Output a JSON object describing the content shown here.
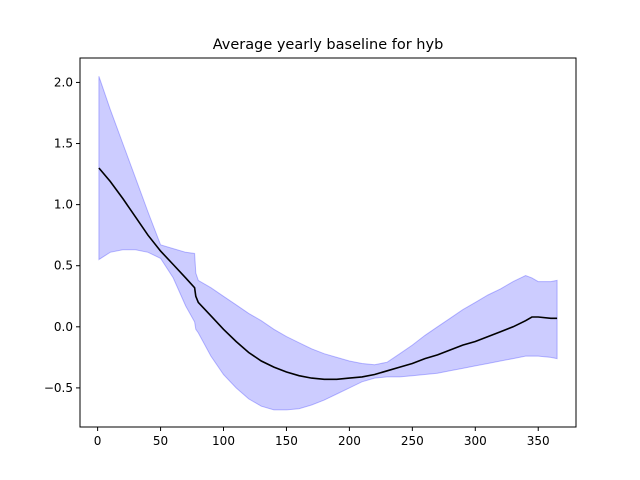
{
  "chart_data": {
    "type": "line",
    "title": "Average yearly baseline for hyb",
    "xlabel": "",
    "ylabel": "",
    "xlim": [
      -14,
      380
    ],
    "ylim": [
      -0.82,
      2.2
    ],
    "xticks": [
      0,
      50,
      100,
      150,
      200,
      250,
      300,
      350
    ],
    "yticks": [
      -0.5,
      0.0,
      0.5,
      1.0,
      1.5,
      2.0
    ],
    "ytick_labels": [
      "−0.5",
      "0.0",
      "0.5",
      "1.0",
      "1.5",
      "2.0"
    ],
    "grid": false,
    "legend": "none",
    "colors": {
      "mean_line": "#000000",
      "band_fill": "#0000ff",
      "band_fill_opacity": 0.2
    },
    "series": [
      {
        "role": "mean",
        "x": [
          1,
          10,
          20,
          30,
          40,
          50,
          60,
          70,
          77,
          78,
          80,
          90,
          100,
          110,
          120,
          130,
          140,
          150,
          160,
          170,
          180,
          190,
          200,
          210,
          220,
          230,
          240,
          250,
          260,
          270,
          280,
          290,
          300,
          310,
          320,
          330,
          340,
          345,
          350,
          360,
          365
        ],
        "y": [
          1.3,
          1.19,
          1.05,
          0.9,
          0.75,
          0.62,
          0.51,
          0.4,
          0.32,
          0.25,
          0.2,
          0.09,
          -0.02,
          -0.12,
          -0.21,
          -0.28,
          -0.33,
          -0.37,
          -0.4,
          -0.42,
          -0.43,
          -0.43,
          -0.42,
          -0.41,
          -0.39,
          -0.36,
          -0.33,
          -0.3,
          -0.26,
          -0.23,
          -0.19,
          -0.15,
          -0.12,
          -0.08,
          -0.04,
          0.0,
          0.05,
          0.08,
          0.08,
          0.07,
          0.07
        ]
      },
      {
        "role": "band",
        "x": [
          1,
          10,
          20,
          30,
          40,
          50,
          60,
          70,
          77,
          78,
          80,
          90,
          100,
          110,
          120,
          130,
          140,
          150,
          160,
          170,
          180,
          190,
          200,
          210,
          220,
          230,
          240,
          250,
          260,
          270,
          280,
          290,
          300,
          310,
          320,
          330,
          340,
          345,
          350,
          360,
          365
        ],
        "upper": [
          2.05,
          1.78,
          1.5,
          1.22,
          0.94,
          0.67,
          0.64,
          0.61,
          0.6,
          0.44,
          0.38,
          0.32,
          0.25,
          0.18,
          0.11,
          0.05,
          -0.02,
          -0.08,
          -0.13,
          -0.18,
          -0.22,
          -0.25,
          -0.28,
          -0.3,
          -0.31,
          -0.29,
          -0.22,
          -0.15,
          -0.07,
          0.0,
          0.07,
          0.14,
          0.2,
          0.26,
          0.31,
          0.37,
          0.42,
          0.4,
          0.37,
          0.37,
          0.38
        ],
        "lower": [
          0.55,
          0.61,
          0.63,
          0.63,
          0.61,
          0.56,
          0.4,
          0.17,
          0.04,
          -0.02,
          -0.05,
          -0.24,
          -0.39,
          -0.5,
          -0.59,
          -0.65,
          -0.68,
          -0.68,
          -0.67,
          -0.64,
          -0.6,
          -0.55,
          -0.5,
          -0.45,
          -0.42,
          -0.41,
          -0.41,
          -0.4,
          -0.39,
          -0.38,
          -0.36,
          -0.34,
          -0.32,
          -0.3,
          -0.28,
          -0.26,
          -0.24,
          -0.24,
          -0.24,
          -0.25,
          -0.26
        ]
      }
    ]
  }
}
